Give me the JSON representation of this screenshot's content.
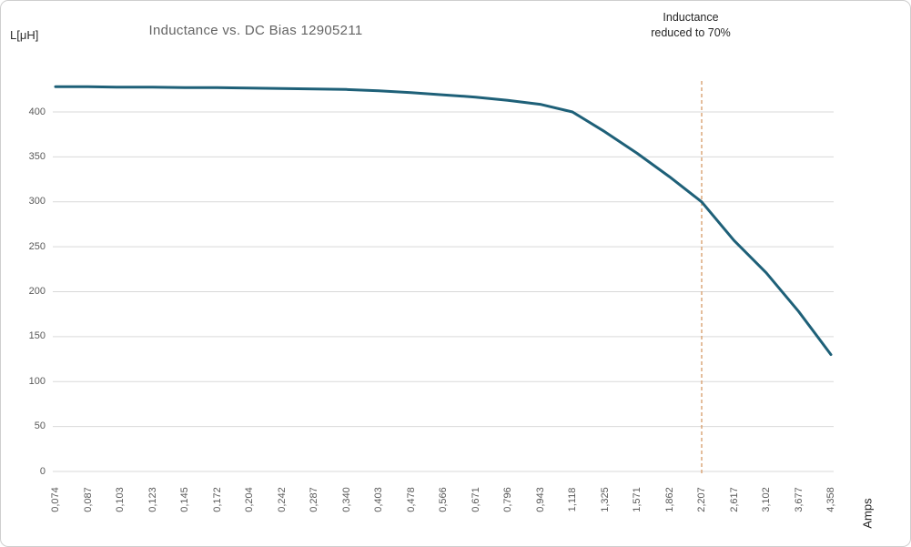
{
  "chart_data": {
    "type": "line",
    "title": "Inductance vs. DC Bias 12905211",
    "y_axis_title": "L[μH]",
    "x_axis_title": "Amps",
    "annotation": {
      "line1": "Inductance",
      "line2": "reduced to 70%",
      "at_category": "2,207",
      "at_value": 300
    },
    "categories": [
      "0,074",
      "0,087",
      "0,103",
      "0,123",
      "0,145",
      "0,172",
      "0,204",
      "0,242",
      "0,287",
      "0,340",
      "0,403",
      "0,478",
      "0,566",
      "0,671",
      "0,796",
      "0,943",
      "1,118",
      "1,325",
      "1,571",
      "1,862",
      "2,207",
      "2,617",
      "3,102",
      "3,677",
      "4,358"
    ],
    "series": [
      {
        "name": "Inductance",
        "values": [
          428,
          428,
          427.5,
          427.5,
          427,
          427,
          426.5,
          426,
          425.5,
          425,
          423.5,
          421.5,
          419,
          416.5,
          413,
          408.5,
          400,
          378,
          354,
          328,
          300,
          257,
          221,
          178,
          130
        ]
      }
    ],
    "y_ticks": [
      0,
      50,
      100,
      150,
      200,
      250,
      300,
      350,
      400
    ],
    "ylim": [
      0,
      435
    ],
    "xlabel_format": "comma-decimal",
    "grid": "horizontal",
    "legend": "none",
    "colors": {
      "line": "#1e6078",
      "threshold_line": "#d9a171",
      "grid": "#d9d9d9",
      "tick_text": "#595959",
      "title_text": "#646464",
      "annotation_text": "#262626"
    }
  }
}
